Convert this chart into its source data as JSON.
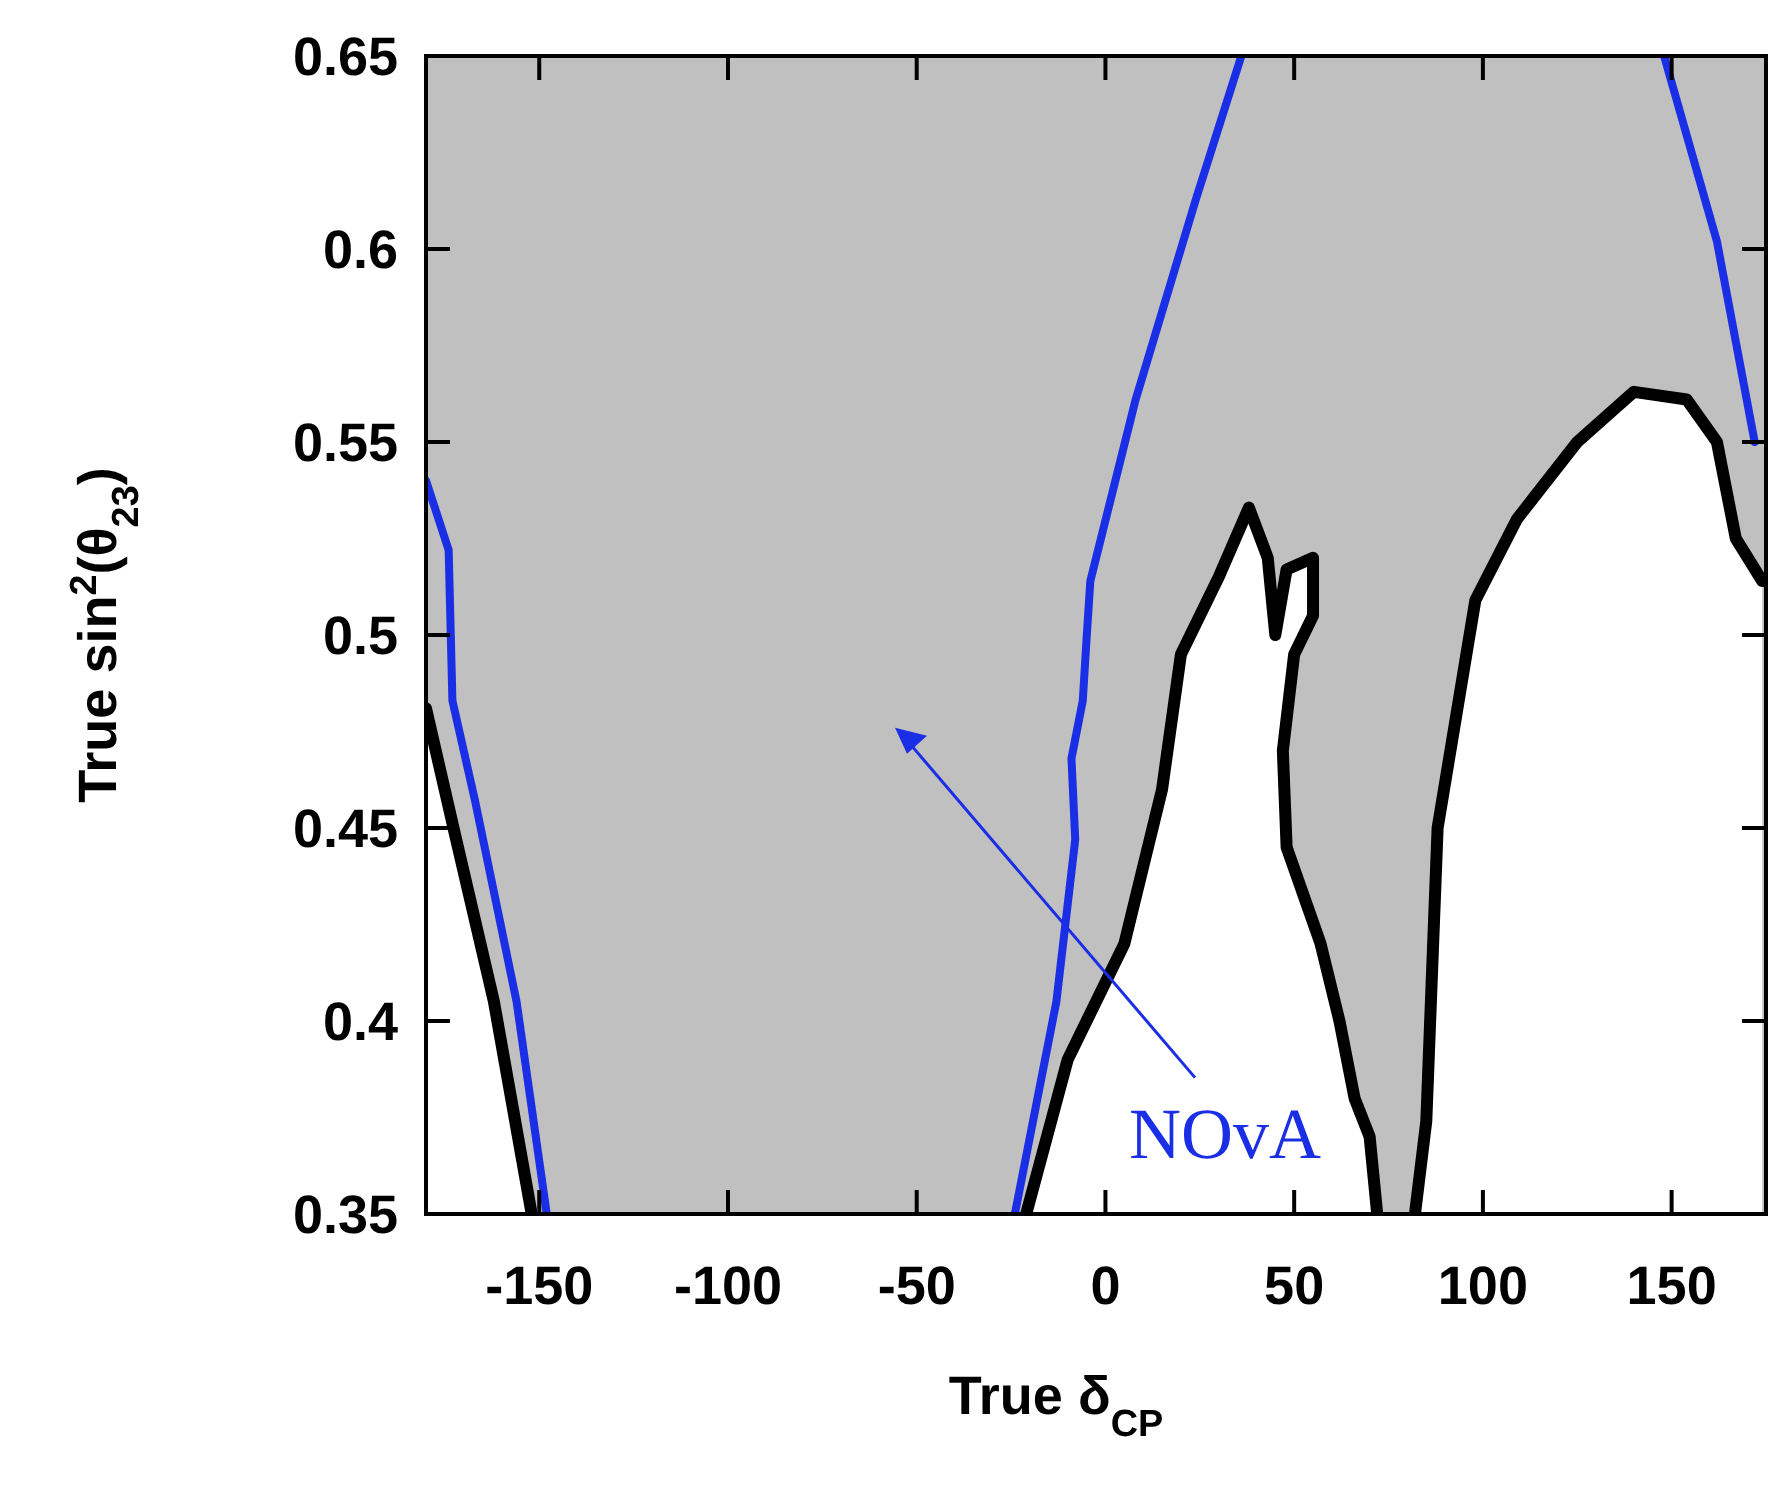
{
  "chart_data": {
    "type": "line",
    "xlabel": "True δ$_{CP}$",
    "ylabel": "True sin$^{2}$(θ$_{23}$)",
    "xlim": [
      -180,
      175
    ],
    "ylim": [
      0.35,
      0.65
    ],
    "xticks": [
      -150,
      -100,
      -50,
      0,
      50,
      100,
      150
    ],
    "yticks": [
      0.35,
      0.4,
      0.45,
      0.5,
      0.55,
      0.6,
      0.65
    ],
    "grid": false,
    "line_style": "solid",
    "bands": [
      {
        "axis": "x",
        "from": -180,
        "to": 175,
        "color": "#c0c0c0"
      }
    ],
    "annotations": [
      "NOvA"
    ],
    "series": [
      {
        "type": "area",
        "color": "#000000",
        "x": [
          -180,
          -172,
          -162,
          -152
        ],
        "values": [
          0.481,
          0.447,
          0.405,
          0.35
        ]
      },
      {
        "type": "area",
        "color": "#000000",
        "x": [
          -21,
          -10,
          5,
          15,
          20,
          30,
          38,
          43,
          45,
          48,
          55,
          55,
          50,
          47,
          48,
          57,
          62,
          66,
          70,
          72
        ],
        "values": [
          0.35,
          0.39,
          0.42,
          0.46,
          0.495,
          0.515,
          0.533,
          0.52,
          0.5,
          0.517,
          0.52,
          0.505,
          0.495,
          0.47,
          0.445,
          0.42,
          0.4,
          0.38,
          0.37,
          0.35
        ]
      },
      {
        "type": "area",
        "color": "#000000",
        "x": [
          82,
          85,
          88,
          98,
          109,
          125,
          140,
          154,
          162,
          167,
          174
        ],
        "values": [
          0.35,
          0.374,
          0.45,
          0.509,
          0.53,
          0.55,
          0.563,
          0.561,
          0.55,
          0.525,
          0.514
        ]
      },
      {
        "color": "#1a2ee6",
        "x": [
          -180,
          -174,
          -173,
          -167,
          -156,
          -148
        ],
        "values": [
          0.54,
          0.522,
          0.483,
          0.457,
          0.405,
          0.35
        ]
      },
      {
        "color": "#1a2ee6",
        "x": [
          -24,
          -13,
          -8,
          -9,
          -6,
          -5,
          -4,
          8,
          24,
          36
        ],
        "values": [
          0.35,
          0.405,
          0.447,
          0.468,
          0.483,
          0.499,
          0.514,
          0.561,
          0.613,
          0.65
        ]
      },
      {
        "color": "#1a2ee6",
        "x": [
          148,
          162,
          172
        ],
        "values": [
          0.65,
          0.602,
          0.55
        ]
      }
    ]
  }
}
